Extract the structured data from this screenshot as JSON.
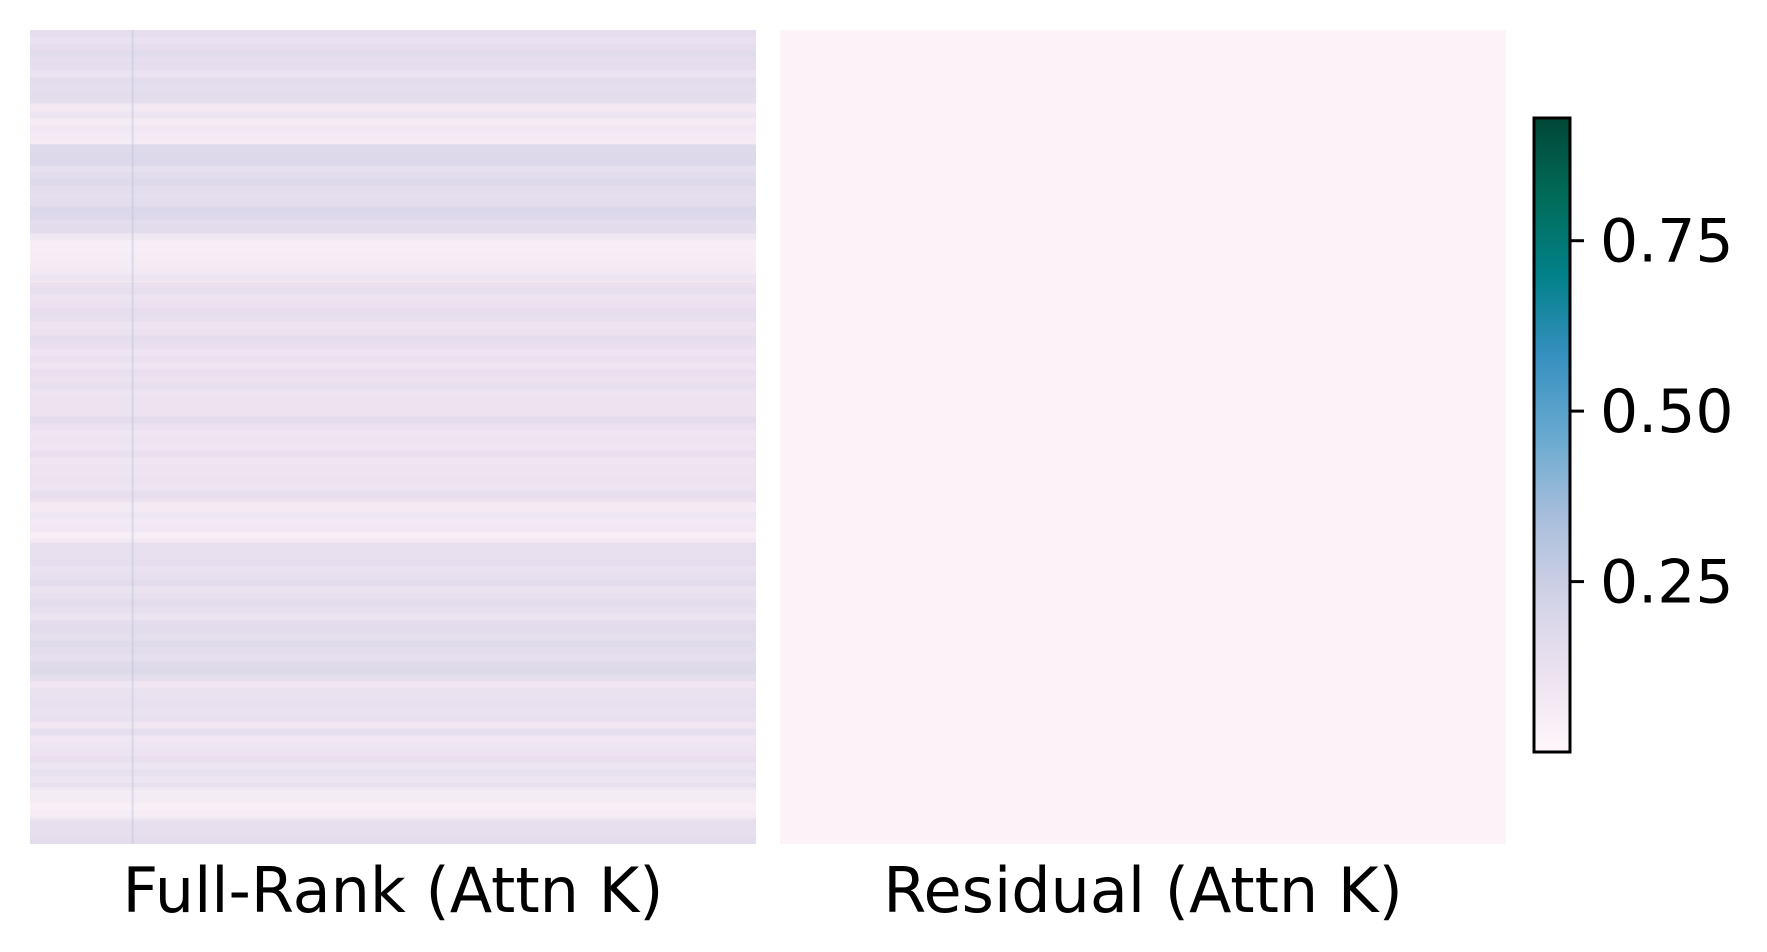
{
  "chart_data": [
    {
      "type": "heatmap",
      "title": "Full-Rank (Attn K)",
      "description_values": {
        "typical_value": 0.12,
        "band_rows": [
          {
            "from": 0.0,
            "to": 0.09,
            "value": 0.14
          },
          {
            "from": 0.09,
            "to": 0.14,
            "value": 0.06
          },
          {
            "from": 0.14,
            "to": 0.25,
            "value": 0.18
          },
          {
            "from": 0.25,
            "to": 0.31,
            "value": 0.05
          },
          {
            "from": 0.31,
            "to": 0.58,
            "value": 0.12
          },
          {
            "from": 0.58,
            "to": 0.63,
            "value": 0.05
          },
          {
            "from": 0.63,
            "to": 0.73,
            "value": 0.14
          },
          {
            "from": 0.73,
            "to": 0.8,
            "value": 0.16
          },
          {
            "from": 0.8,
            "to": 0.93,
            "value": 0.11
          },
          {
            "from": 0.93,
            "to": 0.97,
            "value": 0.04
          },
          {
            "from": 0.97,
            "to": 1.0,
            "value": 0.12
          }
        ],
        "column_line_at": 0.14
      },
      "xlabel": "",
      "ylabel": ""
    },
    {
      "type": "heatmap",
      "title": "Residual (Attn K)",
      "description_values": {
        "typical_value": 0.02
      },
      "xlabel": "",
      "ylabel": ""
    }
  ],
  "colorbar": {
    "colormap": "PuBuGn",
    "vmin": 0.0,
    "vmax": 0.93,
    "ticks": [
      {
        "value": 0.25,
        "label": "0.25"
      },
      {
        "value": 0.5,
        "label": "0.50"
      },
      {
        "value": 0.75,
        "label": "0.75"
      }
    ],
    "stops": [
      {
        "t": 0.0,
        "color": "#fff7fb"
      },
      {
        "t": 0.125,
        "color": "#ece2f0"
      },
      {
        "t": 0.25,
        "color": "#d0d1e6"
      },
      {
        "t": 0.375,
        "color": "#a6bddb"
      },
      {
        "t": 0.5,
        "color": "#67a9cf"
      },
      {
        "t": 0.625,
        "color": "#3690c0"
      },
      {
        "t": 0.75,
        "color": "#02818a"
      },
      {
        "t": 0.875,
        "color": "#016c59"
      },
      {
        "t": 1.0,
        "color": "#014636"
      }
    ]
  }
}
